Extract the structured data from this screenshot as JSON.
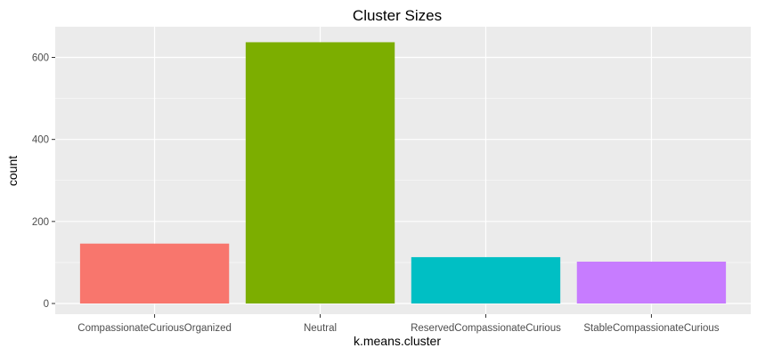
{
  "chart_data": {
    "type": "bar",
    "title": "Cluster Sizes",
    "xlabel": "k.means.cluster",
    "ylabel": "count",
    "categories": [
      "CompassionateCuriousOrganized",
      "Neutral",
      "ReservedCompassionateCurious",
      "StableCompassionateCurious"
    ],
    "values": [
      146,
      637,
      113,
      102
    ],
    "colors": [
      "#F8766D",
      "#7CAE00",
      "#00BFC4",
      "#C77CFF"
    ],
    "ylim": [
      0,
      660
    ],
    "yticks": [
      0,
      200,
      400,
      600
    ],
    "ytick_labels": [
      "0",
      "200",
      "400",
      "600"
    ],
    "grid": true,
    "legend": "none",
    "panel_background": "#EBEBEB",
    "grid_color": "#FFFFFF"
  }
}
